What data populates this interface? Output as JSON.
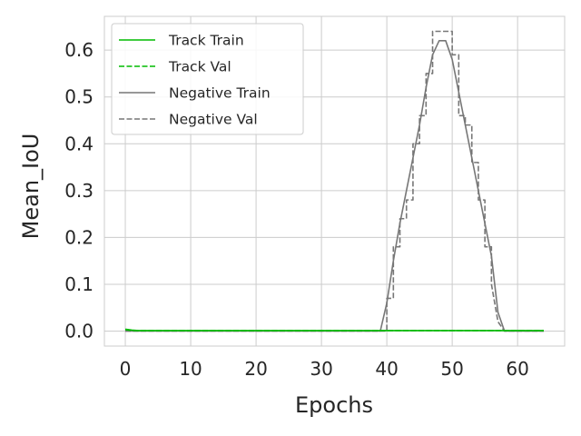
{
  "chart_data": {
    "type": "line",
    "title": "",
    "xlabel": "Epochs",
    "ylabel": "Mean_IoU",
    "xlim": [
      -3.2,
      67.2
    ],
    "ylim": [
      -0.032,
      0.672
    ],
    "xticks": [
      0,
      10,
      20,
      30,
      40,
      50,
      60
    ],
    "yticks": [
      0.0,
      0.1,
      0.2,
      0.3,
      0.4,
      0.5,
      0.6
    ],
    "xtick_labels": [
      "0",
      "10",
      "20",
      "30",
      "40",
      "50",
      "60"
    ],
    "ytick_labels": [
      "0.0",
      "0.1",
      "0.2",
      "0.3",
      "0.4",
      "0.5",
      "0.6"
    ],
    "grid": true,
    "legend_position": "top-left",
    "series": [
      {
        "name": "Track Train",
        "color": "#00bb00",
        "style": "solid",
        "points": [
          [
            0,
            0.004
          ],
          [
            1,
            0.002
          ],
          [
            2,
            0.001
          ],
          [
            64,
            0.001
          ]
        ]
      },
      {
        "name": "Track Val",
        "color": "#00bb00",
        "style": "dashed",
        "points": [
          [
            0,
            0.003
          ],
          [
            1,
            0.001
          ],
          [
            64,
            0.001
          ]
        ]
      },
      {
        "name": "Negative Train",
        "color": "#777777",
        "style": "solid",
        "points": [
          [
            0,
            0.0
          ],
          [
            39,
            0.0
          ],
          [
            40,
            0.06
          ],
          [
            41,
            0.15
          ],
          [
            42,
            0.23
          ],
          [
            43,
            0.3
          ],
          [
            44,
            0.37
          ],
          [
            45,
            0.44
          ],
          [
            46,
            0.52
          ],
          [
            47,
            0.59
          ],
          [
            48,
            0.62
          ],
          [
            49,
            0.62
          ],
          [
            50,
            0.58
          ],
          [
            51,
            0.51
          ],
          [
            52,
            0.44
          ],
          [
            53,
            0.37
          ],
          [
            54,
            0.3
          ],
          [
            55,
            0.23
          ],
          [
            56,
            0.16
          ],
          [
            57,
            0.04
          ],
          [
            58,
            0.0
          ],
          [
            64,
            0.0
          ]
        ]
      },
      {
        "name": "Negative Val",
        "color": "#777777",
        "style": "dashed",
        "points": [
          [
            0,
            0.0
          ],
          [
            40,
            0.0
          ],
          [
            40,
            0.07
          ],
          [
            41,
            0.07
          ],
          [
            41,
            0.18
          ],
          [
            42,
            0.18
          ],
          [
            42,
            0.24
          ],
          [
            43,
            0.24
          ],
          [
            43,
            0.28
          ],
          [
            44,
            0.28
          ],
          [
            44,
            0.4
          ],
          [
            45,
            0.4
          ],
          [
            45,
            0.46
          ],
          [
            46,
            0.46
          ],
          [
            46,
            0.55
          ],
          [
            47,
            0.55
          ],
          [
            47,
            0.64
          ],
          [
            50,
            0.64
          ],
          [
            50,
            0.59
          ],
          [
            51,
            0.59
          ],
          [
            51,
            0.46
          ],
          [
            52,
            0.46
          ],
          [
            52,
            0.44
          ],
          [
            53,
            0.44
          ],
          [
            53,
            0.36
          ],
          [
            54,
            0.36
          ],
          [
            54,
            0.28
          ],
          [
            55,
            0.28
          ],
          [
            55,
            0.18
          ],
          [
            56,
            0.18
          ],
          [
            56,
            0.1
          ],
          [
            57,
            0.02
          ],
          [
            58,
            0.0
          ],
          [
            64,
            0.0
          ]
        ]
      }
    ]
  }
}
